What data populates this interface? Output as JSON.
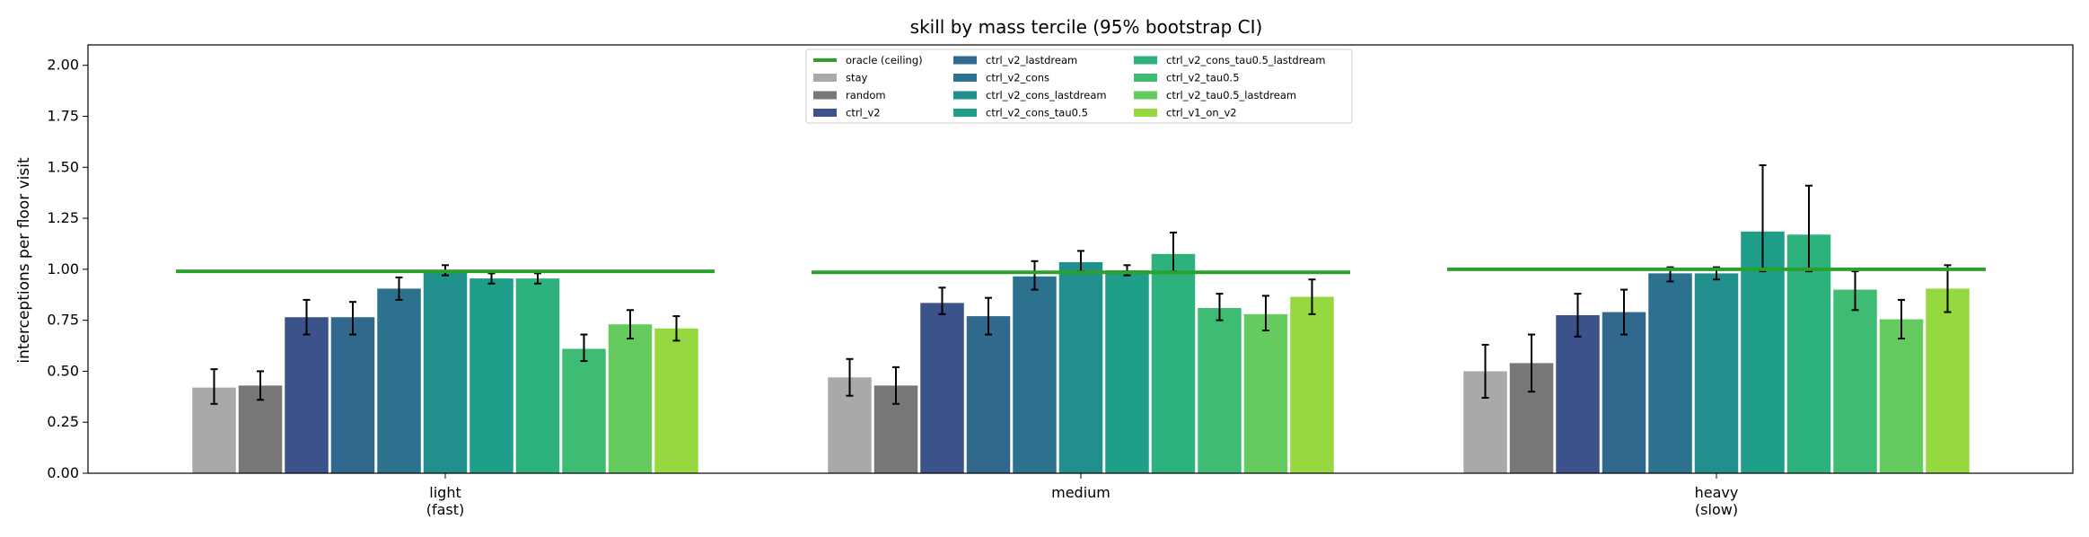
{
  "chart_data": {
    "type": "bar",
    "title": "skill by mass tercile (95% bootstrap CI)",
    "ylabel": "interceptions per floor visit",
    "xlabel": "",
    "ylim": [
      0,
      2.1
    ],
    "yticks": [
      "0.00",
      "0.25",
      "0.50",
      "0.75",
      "1.00",
      "1.25",
      "1.50",
      "1.75",
      "2.00"
    ],
    "categories": [
      {
        "line1": "light",
        "line2": "(fast)"
      },
      {
        "line1": "medium",
        "line2": ""
      },
      {
        "line1": "heavy",
        "line2": "(slow)"
      }
    ],
    "legend_position": "upper center",
    "oracle": {
      "name": "oracle (ceiling)",
      "color": "#2ca02c",
      "values": [
        0.99,
        0.985,
        1.0
      ]
    },
    "series": [
      {
        "name": "stay",
        "color": "#a9a9a9",
        "values": [
          0.42,
          0.47,
          0.5
        ],
        "ci_low": [
          0.34,
          0.38,
          0.37
        ],
        "ci_high": [
          0.51,
          0.56,
          0.63
        ]
      },
      {
        "name": "random",
        "color": "#777777",
        "values": [
          0.43,
          0.43,
          0.54
        ],
        "ci_low": [
          0.36,
          0.34,
          0.4
        ],
        "ci_high": [
          0.5,
          0.52,
          0.68
        ]
      },
      {
        "name": "ctrl_v2",
        "color": "#3b528b",
        "values": [
          0.765,
          0.835,
          0.775
        ],
        "ci_low": [
          0.68,
          0.78,
          0.67
        ],
        "ci_high": [
          0.85,
          0.91,
          0.88
        ]
      },
      {
        "name": "ctrl_v2_lastdream",
        "color": "#31688e",
        "values": [
          0.765,
          0.77,
          0.79
        ],
        "ci_low": [
          0.68,
          0.68,
          0.68
        ],
        "ci_high": [
          0.84,
          0.86,
          0.9
        ]
      },
      {
        "name": "ctrl_v2_cons",
        "color": "#2c728e",
        "values": [
          0.905,
          0.965,
          0.98
        ],
        "ci_low": [
          0.85,
          0.9,
          0.94
        ],
        "ci_high": [
          0.96,
          1.04,
          1.01
        ]
      },
      {
        "name": "ctrl_v2_cons_lastdream",
        "color": "#21908d",
        "values": [
          0.995,
          1.035,
          0.98
        ],
        "ci_low": [
          0.97,
          0.99,
          0.95
        ],
        "ci_high": [
          1.02,
          1.09,
          1.01
        ]
      },
      {
        "name": "ctrl_v2_cons_tau0.5",
        "color": "#1f9e89",
        "values": [
          0.955,
          0.995,
          1.185
        ],
        "ci_low": [
          0.93,
          0.97,
          0.99
        ],
        "ci_high": [
          0.98,
          1.02,
          1.51
        ]
      },
      {
        "name": "ctrl_v2_cons_tau0.5_lastdream",
        "color": "#2db27d",
        "values": [
          0.955,
          1.075,
          1.17
        ],
        "ci_low": [
          0.93,
          0.99,
          0.99
        ],
        "ci_high": [
          0.98,
          1.18,
          1.41
        ]
      },
      {
        "name": "ctrl_v2_tau0.5",
        "color": "#3fbc73",
        "values": [
          0.61,
          0.81,
          0.9
        ],
        "ci_low": [
          0.55,
          0.75,
          0.8
        ],
        "ci_high": [
          0.68,
          0.88,
          0.99
        ]
      },
      {
        "name": "ctrl_v2_tau0.5_lastdream",
        "color": "#65cb5e",
        "values": [
          0.73,
          0.78,
          0.755
        ],
        "ci_low": [
          0.66,
          0.7,
          0.66
        ],
        "ci_high": [
          0.8,
          0.87,
          0.85
        ]
      },
      {
        "name": "ctrl_v1_on_v2",
        "color": "#95d840",
        "values": [
          0.71,
          0.865,
          0.905
        ],
        "ci_low": [
          0.65,
          0.78,
          0.79
        ],
        "ci_high": [
          0.77,
          0.95,
          1.02
        ]
      }
    ]
  }
}
